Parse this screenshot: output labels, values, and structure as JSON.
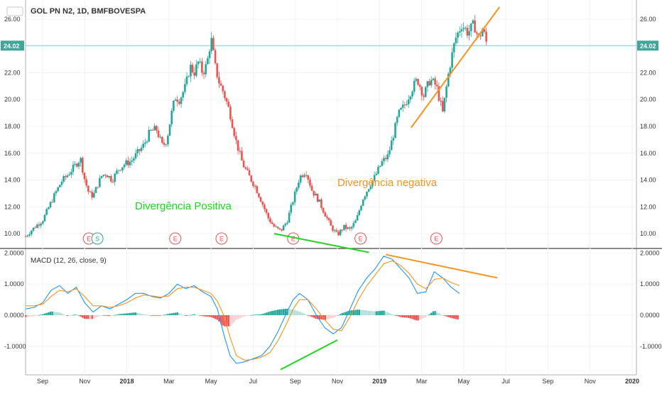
{
  "chart_data": [
    {
      "type": "candlestick",
      "title": "GOL PN N2, 1D, BMFBOVESPA",
      "last_price": "24.02",
      "y_ticks": [
        "10.00",
        "12.00",
        "14.00",
        "16.00",
        "18.00",
        "20.00",
        "22.00",
        "24.00",
        "26.00"
      ],
      "ylim": [
        9.0,
        27.0
      ],
      "x_labels": [
        {
          "label": "Sep",
          "t": 0.0,
          "bold": false
        },
        {
          "label": "Nov",
          "t": 2.0,
          "bold": false
        },
        {
          "label": "2018",
          "t": 4.0,
          "bold": true
        },
        {
          "label": "Mar",
          "t": 6.0,
          "bold": false
        },
        {
          "label": "May",
          "t": 8.0,
          "bold": false
        },
        {
          "label": "Jul",
          "t": 10.0,
          "bold": false
        },
        {
          "label": "Sep",
          "t": 12.0,
          "bold": false
        },
        {
          "label": "Nov",
          "t": 14.0,
          "bold": false
        },
        {
          "label": "2019",
          "t": 16.0,
          "bold": true
        },
        {
          "label": "Mar",
          "t": 18.0,
          "bold": false
        },
        {
          "label": "May",
          "t": 20.0,
          "bold": false
        },
        {
          "label": "Jul",
          "t": 22.0,
          "bold": false
        },
        {
          "label": "Sep",
          "t": 24.0,
          "bold": false
        },
        {
          "label": "Nov",
          "t": 26.0,
          "bold": false
        },
        {
          "label": "2020",
          "t": 28.0,
          "bold": true
        }
      ],
      "close_path": [
        [
          -0.8,
          9.8
        ],
        [
          -0.5,
          10.3
        ],
        [
          -0.3,
          10.6
        ],
        [
          0.0,
          11.0
        ],
        [
          0.3,
          12.0
        ],
        [
          0.6,
          13.0
        ],
        [
          0.9,
          13.9
        ],
        [
          1.2,
          14.4
        ],
        [
          1.5,
          15.0
        ],
        [
          1.8,
          15.6
        ],
        [
          2.0,
          14.0
        ],
        [
          2.2,
          13.0
        ],
        [
          2.4,
          12.8
        ],
        [
          2.6,
          13.6
        ],
        [
          2.8,
          14.3
        ],
        [
          3.0,
          14.5
        ],
        [
          3.3,
          14.0
        ],
        [
          3.6,
          14.8
        ],
        [
          3.9,
          15.2
        ],
        [
          4.2,
          15.4
        ],
        [
          4.5,
          16.0
        ],
        [
          4.8,
          16.6
        ],
        [
          5.1,
          17.6
        ],
        [
          5.4,
          17.8
        ],
        [
          5.7,
          16.5
        ],
        [
          5.9,
          17.0
        ],
        [
          6.1,
          18.8
        ],
        [
          6.3,
          20.2
        ],
        [
          6.5,
          20.0
        ],
        [
          6.8,
          21.0
        ],
        [
          7.0,
          22.5
        ],
        [
          7.2,
          22.0
        ],
        [
          7.4,
          22.8
        ],
        [
          7.6,
          22.0
        ],
        [
          7.8,
          22.6
        ],
        [
          8.0,
          24.6
        ],
        [
          8.2,
          22.4
        ],
        [
          8.4,
          21.2
        ],
        [
          8.6,
          20.5
        ],
        [
          8.9,
          19.0
        ],
        [
          9.2,
          16.8
        ],
        [
          9.5,
          15.2
        ],
        [
          9.8,
          14.3
        ],
        [
          10.1,
          13.5
        ],
        [
          10.4,
          12.4
        ],
        [
          10.7,
          11.2
        ],
        [
          11.0,
          10.5
        ],
        [
          11.3,
          10.2
        ],
        [
          11.6,
          10.9
        ],
        [
          11.9,
          12.5
        ],
        [
          12.2,
          14.2
        ],
        [
          12.5,
          14.7
        ],
        [
          12.8,
          13.2
        ],
        [
          13.1,
          12.5
        ],
        [
          13.4,
          11.5
        ],
        [
          13.7,
          10.5
        ],
        [
          14.0,
          9.9
        ],
        [
          14.3,
          10.5
        ],
        [
          14.6,
          10.3
        ],
        [
          14.9,
          11.0
        ],
        [
          15.2,
          12.6
        ],
        [
          15.5,
          13.5
        ],
        [
          15.8,
          14.3
        ],
        [
          16.1,
          15.3
        ],
        [
          16.4,
          15.8
        ],
        [
          16.6,
          17.0
        ],
        [
          16.9,
          18.9
        ],
        [
          17.2,
          19.6
        ],
        [
          17.5,
          20.7
        ],
        [
          17.8,
          21.5
        ],
        [
          18.1,
          20.3
        ],
        [
          18.4,
          21.5
        ],
        [
          18.7,
          21.0
        ],
        [
          19.0,
          19.0
        ],
        [
          19.3,
          22.2
        ],
        [
          19.6,
          24.5
        ],
        [
          19.9,
          25.6
        ],
        [
          20.2,
          25.0
        ],
        [
          20.5,
          25.6
        ],
        [
          20.7,
          24.5
        ],
        [
          20.9,
          25.3
        ],
        [
          21.1,
          24.1
        ]
      ],
      "channel_line": {
        "from": [
          17.5,
          17.9
        ],
        "to": [
          21.7,
          26.9
        ]
      },
      "support_line": {
        "from": [
          11.0,
          10.0
        ],
        "to": [
          15.5,
          8.6
        ]
      },
      "event_markers": [
        {
          "label": "E",
          "t": 2.2
        },
        {
          "label": "S",
          "t": 2.6
        },
        {
          "label": "E",
          "t": 6.3
        },
        {
          "label": "E",
          "t": 8.5
        },
        {
          "label": "E",
          "t": 11.9
        },
        {
          "label": "E",
          "t": 15.1
        },
        {
          "label": "E",
          "t": 18.7
        }
      ],
      "annotations": [
        {
          "text": "Divergência Positiva",
          "color": "#21d421"
        },
        {
          "text": "Divergência negativa",
          "color": "#f7931e"
        }
      ]
    },
    {
      "type": "line+bar",
      "title": "MACD (12, 26, close, 9)",
      "y_ticks": [
        "2.0000",
        "1.0000",
        "0.0000",
        "-1.0000"
      ],
      "ylim": [
        -1.85,
        2.1
      ],
      "series": [
        {
          "role": "macd",
          "color": "#2196f3",
          "points": [
            [
              -0.8,
              0.2
            ],
            [
              -0.4,
              0.25
            ],
            [
              0.0,
              0.4
            ],
            [
              0.4,
              0.8
            ],
            [
              0.8,
              0.95
            ],
            [
              1.2,
              0.7
            ],
            [
              1.6,
              0.9
            ],
            [
              2.0,
              0.4
            ],
            [
              2.4,
              0.1
            ],
            [
              2.8,
              0.3
            ],
            [
              3.2,
              0.2
            ],
            [
              3.6,
              0.35
            ],
            [
              4.0,
              0.5
            ],
            [
              4.4,
              0.7
            ],
            [
              4.8,
              0.7
            ],
            [
              5.2,
              0.6
            ],
            [
              5.6,
              0.55
            ],
            [
              6.0,
              0.7
            ],
            [
              6.4,
              1.0
            ],
            [
              6.8,
              0.85
            ],
            [
              7.2,
              0.95
            ],
            [
              7.6,
              0.75
            ],
            [
              8.0,
              0.6
            ],
            [
              8.3,
              0.2
            ],
            [
              8.6,
              -0.6
            ],
            [
              8.9,
              -1.3
            ],
            [
              9.2,
              -1.55
            ],
            [
              9.6,
              -1.5
            ],
            [
              10.0,
              -1.4
            ],
            [
              10.4,
              -1.3
            ],
            [
              10.8,
              -1.0
            ],
            [
              11.2,
              -0.5
            ],
            [
              11.6,
              0.1
            ],
            [
              11.9,
              0.5
            ],
            [
              12.2,
              0.7
            ],
            [
              12.6,
              0.5
            ],
            [
              13.0,
              0.0
            ],
            [
              13.4,
              -0.4
            ],
            [
              13.8,
              -0.6
            ],
            [
              14.2,
              -0.4
            ],
            [
              14.6,
              0.2
            ],
            [
              15.0,
              0.8
            ],
            [
              15.4,
              1.2
            ],
            [
              15.8,
              1.5
            ],
            [
              16.2,
              1.9
            ],
            [
              16.6,
              1.8
            ],
            [
              17.0,
              1.5
            ],
            [
              17.4,
              1.2
            ],
            [
              17.8,
              0.7
            ],
            [
              18.2,
              0.75
            ],
            [
              18.6,
              1.4
            ],
            [
              19.0,
              1.2
            ],
            [
              19.4,
              0.9
            ],
            [
              19.8,
              0.7
            ]
          ]
        },
        {
          "role": "signal",
          "color": "#f7931e",
          "points": [
            [
              -0.8,
              0.3
            ],
            [
              -0.4,
              0.3
            ],
            [
              0.0,
              0.35
            ],
            [
              0.4,
              0.6
            ],
            [
              0.8,
              0.8
            ],
            [
              1.2,
              0.75
            ],
            [
              1.6,
              0.85
            ],
            [
              2.0,
              0.6
            ],
            [
              2.4,
              0.3
            ],
            [
              2.8,
              0.3
            ],
            [
              3.2,
              0.25
            ],
            [
              3.6,
              0.3
            ],
            [
              4.0,
              0.4
            ],
            [
              4.4,
              0.55
            ],
            [
              4.8,
              0.65
            ],
            [
              5.2,
              0.62
            ],
            [
              5.6,
              0.58
            ],
            [
              6.0,
              0.62
            ],
            [
              6.4,
              0.85
            ],
            [
              6.8,
              0.9
            ],
            [
              7.2,
              0.9
            ],
            [
              7.6,
              0.8
            ],
            [
              8.0,
              0.7
            ],
            [
              8.3,
              0.45
            ],
            [
              8.6,
              0.0
            ],
            [
              8.9,
              -0.7
            ],
            [
              9.2,
              -1.3
            ],
            [
              9.6,
              -1.45
            ],
            [
              10.0,
              -1.42
            ],
            [
              10.4,
              -1.35
            ],
            [
              10.8,
              -1.2
            ],
            [
              11.2,
              -0.8
            ],
            [
              11.6,
              -0.25
            ],
            [
              11.9,
              0.2
            ],
            [
              12.2,
              0.5
            ],
            [
              12.6,
              0.5
            ],
            [
              13.0,
              0.2
            ],
            [
              13.4,
              -0.15
            ],
            [
              13.8,
              -0.45
            ],
            [
              14.2,
              -0.5
            ],
            [
              14.6,
              -0.05
            ],
            [
              15.0,
              0.5
            ],
            [
              15.4,
              0.95
            ],
            [
              15.8,
              1.3
            ],
            [
              16.2,
              1.65
            ],
            [
              16.6,
              1.75
            ],
            [
              17.0,
              1.6
            ],
            [
              17.4,
              1.35
            ],
            [
              17.8,
              1.0
            ],
            [
              18.2,
              0.85
            ],
            [
              18.6,
              1.15
            ],
            [
              19.0,
              1.2
            ],
            [
              19.4,
              1.05
            ],
            [
              19.8,
              0.95
            ]
          ]
        }
      ],
      "histogram_colors": {
        "pos_rising": "#26a69a",
        "pos_falling": "#b2dfdb",
        "neg_falling": "#ef5350",
        "neg_rising": "#ffcdd2"
      },
      "bearish_line": {
        "from": [
          16.3,
          1.95
        ],
        "to": [
          21.6,
          1.2
        ]
      },
      "bullish_line": {
        "from": [
          11.3,
          -1.75
        ],
        "to": [
          14.0,
          -0.8
        ]
      }
    }
  ]
}
